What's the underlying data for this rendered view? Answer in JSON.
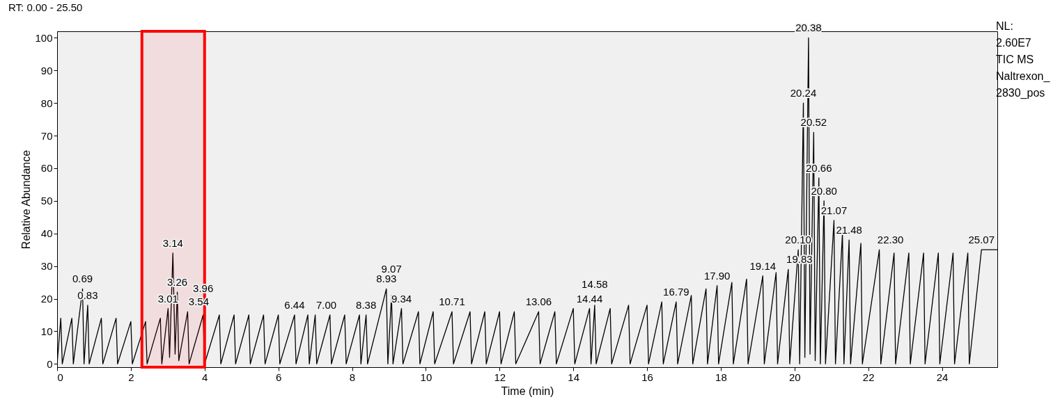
{
  "chart_data": {
    "type": "line",
    "title": "RT: 0.00 - 25.50",
    "xlabel": "Time (min)",
    "ylabel": "Relative Abundance",
    "xlim": [
      0,
      25.5
    ],
    "xticks": [
      0,
      2,
      4,
      6,
      8,
      10,
      12,
      14,
      16,
      18,
      20,
      22,
      24
    ],
    "ylim": [
      -1,
      102
    ],
    "yticks": [
      0,
      10,
      20,
      30,
      40,
      50,
      60,
      70,
      80,
      90,
      100
    ],
    "grid": false,
    "marker": "none",
    "line_style": "solid",
    "series": [
      {
        "color": "#000000",
        "x": [
          0,
          0.1,
          0.14,
          0.4,
          0.44,
          0.69,
          0.73,
          0.83,
          0.87,
          1.2,
          1.24,
          1.6,
          1.64,
          2.0,
          2.04,
          2.4,
          2.44,
          2.8,
          2.84,
          3.01,
          3.05,
          3.14,
          3.2,
          3.26,
          3.3,
          3.54,
          3.58,
          3.96,
          4.0,
          4.4,
          4.44,
          4.8,
          4.84,
          5.2,
          5.24,
          5.6,
          5.64,
          6.0,
          6.04,
          6.44,
          6.48,
          6.8,
          6.84,
          7.0,
          7.04,
          7.4,
          7.44,
          7.8,
          7.84,
          8.2,
          8.24,
          8.38,
          8.42,
          8.93,
          8.97,
          9.07,
          9.11,
          9.34,
          9.38,
          9.8,
          9.84,
          10.2,
          10.24,
          10.71,
          10.75,
          11.2,
          11.24,
          11.6,
          11.64,
          12.0,
          12.04,
          12.4,
          12.44,
          13.06,
          13.1,
          13.5,
          13.54,
          14.0,
          14.04,
          14.44,
          14.48,
          14.58,
          14.62,
          15.0,
          15.04,
          15.5,
          15.54,
          16.0,
          16.04,
          16.4,
          16.44,
          16.79,
          16.83,
          17.2,
          17.24,
          17.6,
          17.64,
          17.9,
          17.94,
          18.3,
          18.34,
          18.7,
          18.74,
          19.14,
          19.18,
          19.5,
          19.54,
          19.83,
          19.87,
          20.1,
          20.14,
          20.24,
          20.28,
          20.38,
          20.42,
          20.52,
          20.56,
          20.66,
          20.7,
          20.8,
          20.84,
          21.07,
          21.11,
          21.3,
          21.34,
          21.48,
          21.52,
          21.8,
          21.84,
          22.3,
          22.34,
          22.7,
          22.74,
          23.1,
          23.14,
          23.5,
          23.54,
          23.9,
          23.94,
          24.3,
          24.34,
          24.7,
          24.74,
          25.07,
          25.3,
          25.5
        ],
        "values": [
          0,
          14,
          0,
          14,
          0,
          23,
          0,
          18,
          0,
          14,
          0,
          14,
          0,
          13,
          0,
          13,
          0,
          14,
          0,
          17,
          2,
          34,
          3,
          22,
          1,
          16,
          0,
          15,
          0,
          15,
          0,
          15,
          0,
          15,
          0,
          15,
          0,
          15,
          0,
          15,
          0,
          15,
          0,
          15,
          0,
          15,
          0,
          15,
          0,
          15,
          0,
          15,
          0,
          23,
          0,
          21,
          0,
          17,
          0,
          16,
          0,
          16,
          0,
          16,
          0,
          16,
          0,
          16,
          0,
          16,
          0,
          16,
          0,
          16,
          0,
          16,
          0,
          17,
          0,
          17,
          0,
          18,
          0,
          17,
          0,
          18,
          0,
          18,
          0,
          19,
          0,
          19,
          0,
          21,
          0,
          23,
          0,
          24,
          0,
          25,
          0,
          26,
          0,
          27,
          0,
          28,
          0,
          29,
          0,
          35,
          0,
          80,
          2,
          100,
          3,
          71,
          1,
          57,
          0,
          50,
          0,
          44,
          0,
          40,
          0,
          38,
          0,
          37,
          0,
          35,
          0,
          34,
          0,
          34,
          0,
          34,
          0,
          34,
          0,
          34,
          0,
          34,
          0,
          35,
          35,
          35
        ]
      }
    ],
    "bands": [
      {
        "axis": "x",
        "from": 2.3,
        "to": 4.0,
        "color": "#ff0000"
      }
    ],
    "annotations": [
      {
        "text": "0.69",
        "x": 0.69,
        "y": 23
      },
      {
        "text": "0.83",
        "x": 0.83,
        "y": 18
      },
      {
        "text": "3.01",
        "x": 3.01,
        "y": 17
      },
      {
        "text": "3.14",
        "x": 3.14,
        "y": 34
      },
      {
        "text": "3.26",
        "x": 3.26,
        "y": 22
      },
      {
        "text": "3.54",
        "x": 3.54,
        "y": 16
      },
      {
        "text": "3.96",
        "x": 3.96,
        "y": 15
      },
      {
        "text": "6.44",
        "x": 6.44,
        "y": 15
      },
      {
        "text": "7.00",
        "x": 7.0,
        "y": 15
      },
      {
        "text": "8.38",
        "x": 8.38,
        "y": 15
      },
      {
        "text": "8.93",
        "x": 8.93,
        "y": 23
      },
      {
        "text": "9.07",
        "x": 9.07,
        "y": 21
      },
      {
        "text": "9.34",
        "x": 9.34,
        "y": 17
      },
      {
        "text": "10.71",
        "x": 10.71,
        "y": 16
      },
      {
        "text": "13.06",
        "x": 13.06,
        "y": 16
      },
      {
        "text": "14.44",
        "x": 14.44,
        "y": 17
      },
      {
        "text": "14.58",
        "x": 14.58,
        "y": 18
      },
      {
        "text": "16.79",
        "x": 16.79,
        "y": 19
      },
      {
        "text": "17.90",
        "x": 17.9,
        "y": 24
      },
      {
        "text": "19.14",
        "x": 19.14,
        "y": 27
      },
      {
        "text": "19.83",
        "x": 19.83,
        "y": 29
      },
      {
        "text": "20.10",
        "x": 20.1,
        "y": 35
      },
      {
        "text": "20.24",
        "x": 20.24,
        "y": 80
      },
      {
        "text": "20.38",
        "x": 20.38,
        "y": 100
      },
      {
        "text": "20.52",
        "x": 20.52,
        "y": 71
      },
      {
        "text": "20.66",
        "x": 20.66,
        "y": 57
      },
      {
        "text": "20.80",
        "x": 20.8,
        "y": 50
      },
      {
        "text": "21.07",
        "x": 21.07,
        "y": 44
      },
      {
        "text": "21.48",
        "x": 21.48,
        "y": 38
      },
      {
        "text": "22.30",
        "x": 22.3,
        "y": 35
      },
      {
        "text": "25.07",
        "x": 25.07,
        "y": 35
      },
      "NL:",
      "2.60E7",
      "TIC  MS",
      "Naltrexon_",
      "2830_pos"
    ]
  }
}
